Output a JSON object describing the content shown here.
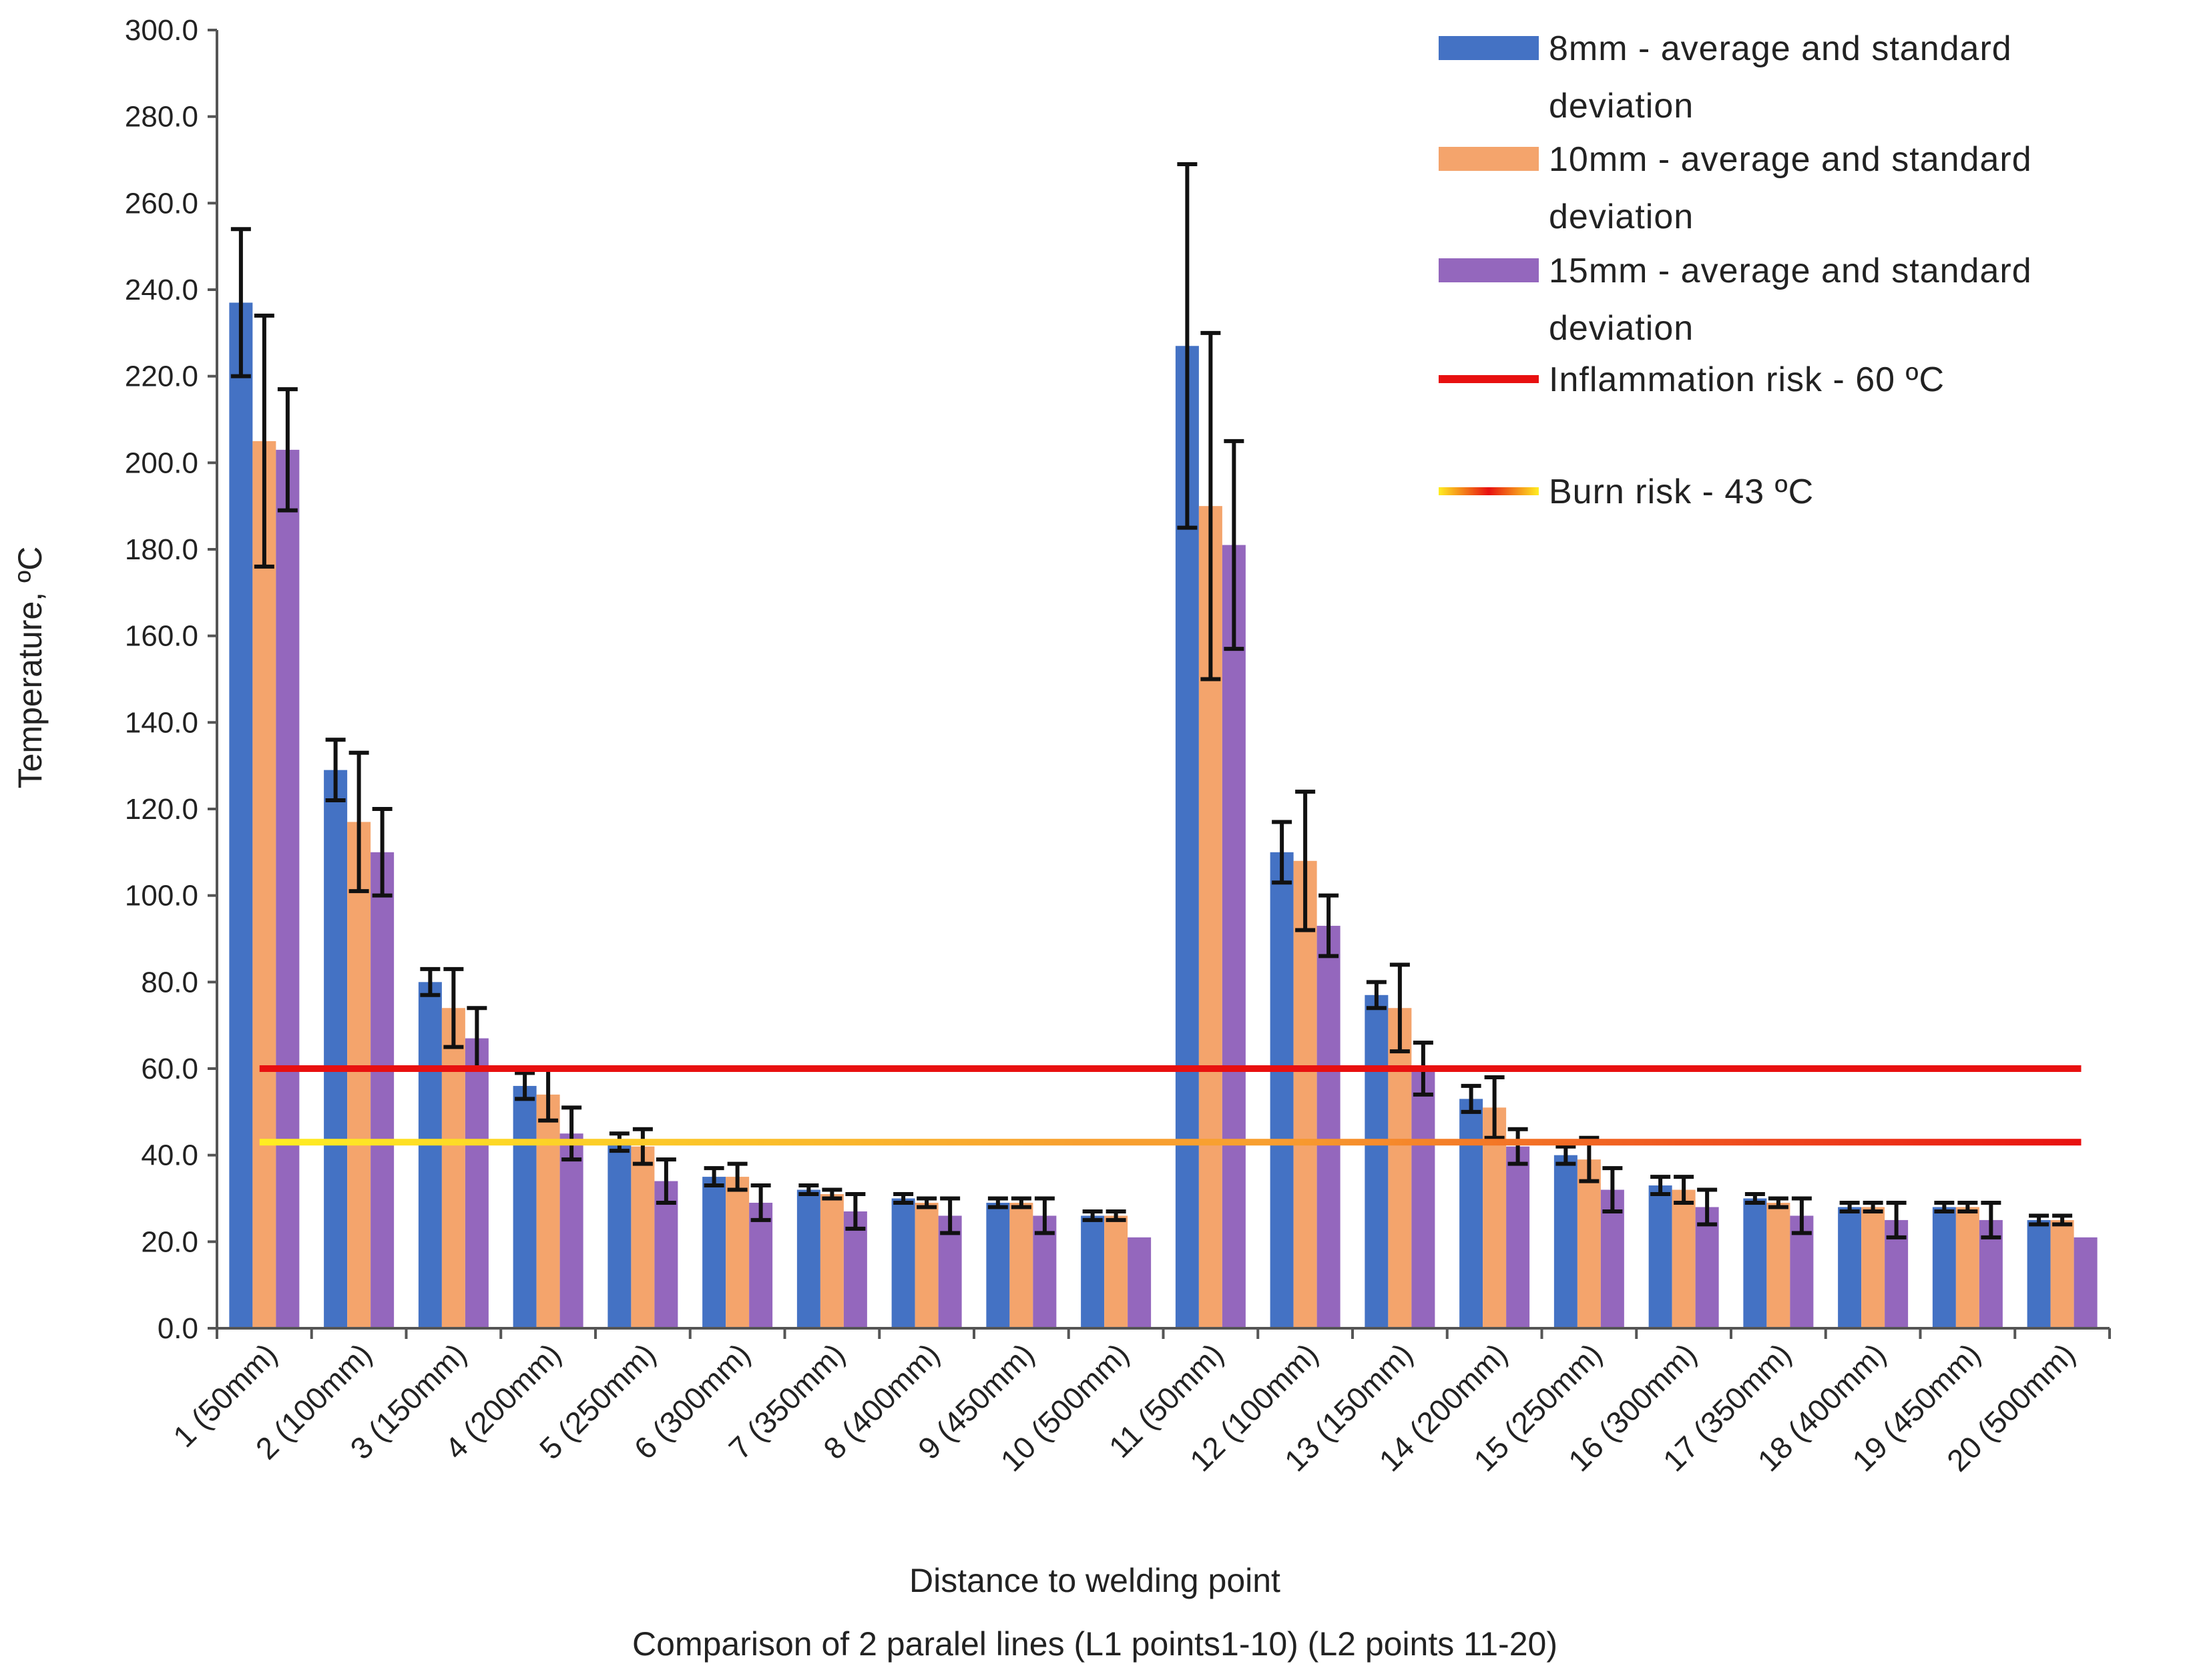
{
  "chart_data": {
    "type": "bar",
    "title": "",
    "xlabel": "Distance to welding point",
    "xlabel2": "Comparison of 2 paralel lines (L1 points1-10) (L2  points 11-20)",
    "ylabel": "Temperature, ºC",
    "ylim": [
      0,
      300
    ],
    "yticks": [
      0,
      20,
      40,
      60,
      80,
      100,
      120,
      140,
      160,
      180,
      200,
      220,
      240,
      260,
      280,
      300
    ],
    "ytick_labels": [
      "0.0",
      "20.0",
      "40.0",
      "60.0",
      "80.0",
      "100.0",
      "120.0",
      "140.0",
      "160.0",
      "180.0",
      "200.0",
      "220.0",
      "240.0",
      "260.0",
      "280.0",
      "300.0"
    ],
    "grid": false,
    "legend_position": "top-right",
    "categories": [
      "1 (50mm)",
      "2 (100mm)",
      "3 (150mm)",
      "4 (200mm)",
      "5 (250mm)",
      "6 (300mm)",
      "7 (350mm)",
      "8 (400mm)",
      "9 (450mm)",
      "10 (500mm)",
      "11 (50mm)",
      "12 (100mm)",
      "13 (150mm)",
      "14 (200mm)",
      "15 (250mm)",
      "16 (300mm)",
      "17 (350mm)",
      "18 (400mm)",
      "19 (450mm)",
      "20 (500mm)"
    ],
    "series": [
      {
        "name": "8mm - average and standard deviation",
        "legend_lines": [
          "8mm - average and standard",
          "deviation"
        ],
        "color": "#4472C4",
        "values": [
          237,
          129,
          80,
          56,
          43,
          35,
          32,
          30,
          29,
          26,
          227,
          110,
          77,
          53,
          40,
          33,
          30,
          28,
          28,
          25
        ],
        "errors": [
          17,
          7,
          3,
          3,
          2,
          2,
          1,
          1,
          1,
          1,
          42,
          7,
          3,
          3,
          2,
          2,
          1,
          1,
          1,
          1
        ]
      },
      {
        "name": "10mm - average and standard deviation",
        "legend_lines": [
          "10mm - average and standard",
          "deviation"
        ],
        "color": "#F4A46C",
        "values": [
          205,
          117,
          74,
          54,
          42,
          35,
          31,
          29,
          29,
          26,
          190,
          108,
          74,
          51,
          39,
          32,
          29,
          28,
          28,
          25
        ],
        "errors": [
          29,
          16,
          9,
          6,
          4,
          3,
          1,
          1,
          1,
          1,
          40,
          16,
          10,
          7,
          5,
          3,
          1,
          1,
          1,
          1
        ]
      },
      {
        "name": "15mm - average and standard deviation",
        "legend_lines": [
          "15mm - average and standard",
          "deviation"
        ],
        "color": "#9467BD",
        "values": [
          203,
          110,
          67,
          45,
          34,
          29,
          27,
          26,
          26,
          21,
          181,
          93,
          60,
          42,
          32,
          28,
          26,
          25,
          25,
          21
        ],
        "errors": [
          14,
          10,
          7,
          6,
          5,
          4,
          4,
          4,
          4,
          0,
          24,
          7,
          6,
          4,
          5,
          4,
          4,
          4,
          4,
          0
        ]
      }
    ],
    "reference_lines": [
      {
        "name": "Inflammation risk - 60 ºC",
        "value": 60,
        "color": "#E81010"
      },
      {
        "name": "Burn risk - 43 ºC",
        "value": 43,
        "color_start": "#FFEE22",
        "color_end": "#E81010"
      }
    ]
  }
}
